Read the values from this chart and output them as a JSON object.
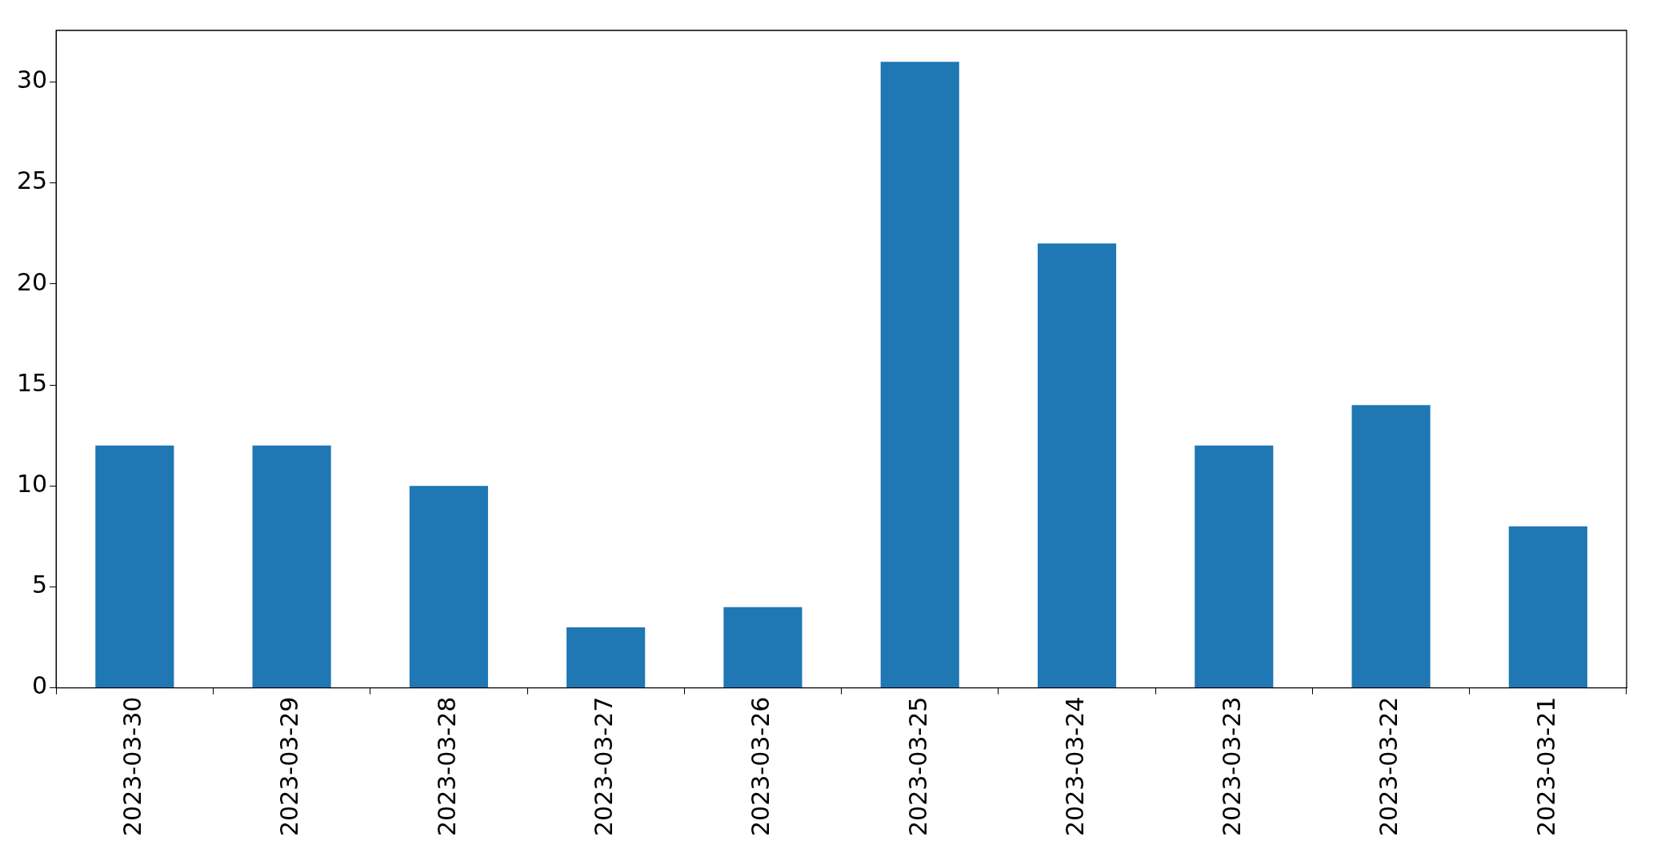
{
  "chart_data": {
    "type": "bar",
    "categories": [
      "2023-03-30",
      "2023-03-29",
      "2023-03-28",
      "2023-03-27",
      "2023-03-26",
      "2023-03-25",
      "2023-03-24",
      "2023-03-23",
      "2023-03-22",
      "2023-03-21"
    ],
    "values": [
      12,
      12,
      10,
      3,
      4,
      31,
      22,
      12,
      14,
      8
    ],
    "color": "#1f77b4",
    "ylim": [
      0,
      32.55
    ],
    "yticks": [
      0,
      5,
      10,
      15,
      20,
      25,
      30
    ],
    "grid": false,
    "legend": false
  }
}
